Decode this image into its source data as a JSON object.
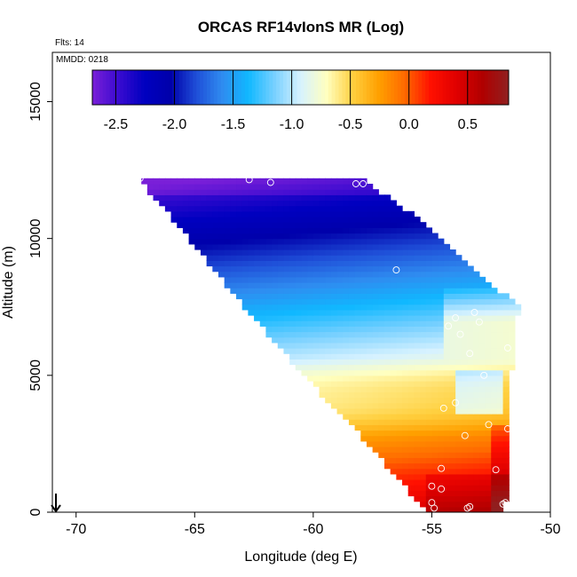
{
  "chart_data": {
    "type": "heatmap",
    "title": "ORCAS RF14vIonS MR (Log)",
    "flights_label": "Flts: 14",
    "date_label": "MMDD: 0218",
    "xlabel": "Longitude (deg E)",
    "ylabel": "Altitude (m)",
    "xlim": [
      -71,
      -50
    ],
    "ylim": [
      0,
      16800
    ],
    "x_ticks": [
      -70,
      -65,
      -60,
      -55,
      -50
    ],
    "x_tick_labels": [
      "-70",
      "-65",
      "-60",
      "-55",
      "-50"
    ],
    "y_ticks": [
      0,
      5000,
      10000,
      15000
    ],
    "y_tick_labels": [
      "0",
      "5000",
      "10000",
      "15000"
    ],
    "colorbar": {
      "range": [
        -2.7,
        0.85
      ],
      "ticks": [
        -2.5,
        -2.0,
        -1.5,
        -1.0,
        -0.5,
        0.0,
        0.5
      ],
      "tick_labels": [
        "-2.5",
        "-2.0",
        "-1.5",
        "-1.0",
        "-0.5",
        "0.0",
        "0.5"
      ],
      "colors": [
        "#7a1fd8",
        "#3a0bd0",
        "#0000c0",
        "#0000aa",
        "#1f4fd8",
        "#2f8cf0",
        "#10b8ff",
        "#78d0ff",
        "#d6f2ff",
        "#ffffc0",
        "#ffd040",
        "#ffa000",
        "#ff6a00",
        "#ff1000",
        "#e00000",
        "#b00000",
        "#902020"
      ]
    },
    "field": {
      "lon_range": [
        -67.5,
        -51.2
      ],
      "alt_range": [
        0,
        12200
      ],
      "left_boundary": [
        [
          12200,
          -67.4
        ],
        [
          11000,
          -66.2
        ],
        [
          9000,
          -64.3
        ],
        [
          7000,
          -62.4
        ],
        [
          5000,
          -60.4
        ],
        [
          3000,
          -58.2
        ],
        [
          1000,
          -56.2
        ],
        [
          0,
          -55.2
        ]
      ],
      "right_boundary": [
        [
          12200,
          -58.0
        ],
        [
          11000,
          -56.0
        ],
        [
          9500,
          -54.0
        ],
        [
          8000,
          -52.0
        ],
        [
          7600,
          -51.3
        ],
        [
          6000,
          -51.6
        ],
        [
          3000,
          -51.7
        ],
        [
          0,
          -51.9
        ]
      ]
    },
    "markers": [
      {
        "lon": -67.3,
        "alt": 12200
      },
      {
        "lon": -62.7,
        "alt": 12150
      },
      {
        "lon": -61.8,
        "alt": 12050
      },
      {
        "lon": -58.2,
        "alt": 12000
      },
      {
        "lon": -57.9,
        "alt": 12000
      },
      {
        "lon": -56.5,
        "alt": 8850
      },
      {
        "lon": -54.0,
        "alt": 7100
      },
      {
        "lon": -54.3,
        "alt": 6800
      },
      {
        "lon": -53.8,
        "alt": 6500
      },
      {
        "lon": -53.2,
        "alt": 7300
      },
      {
        "lon": -53.0,
        "alt": 6950
      },
      {
        "lon": -53.4,
        "alt": 5800
      },
      {
        "lon": -51.8,
        "alt": 6000
      },
      {
        "lon": -52.8,
        "alt": 5000
      },
      {
        "lon": -54.0,
        "alt": 4000
      },
      {
        "lon": -54.5,
        "alt": 3800
      },
      {
        "lon": -52.6,
        "alt": 3200
      },
      {
        "lon": -51.8,
        "alt": 3050
      },
      {
        "lon": -53.6,
        "alt": 2800
      },
      {
        "lon": -54.6,
        "alt": 1600
      },
      {
        "lon": -52.3,
        "alt": 1550
      },
      {
        "lon": -55.0,
        "alt": 950
      },
      {
        "lon": -54.6,
        "alt": 850
      },
      {
        "lon": -55.0,
        "alt": 350
      },
      {
        "lon": -51.9,
        "alt": 350
      },
      {
        "lon": -52.0,
        "alt": 300
      },
      {
        "lon": -53.4,
        "alt": 200
      },
      {
        "lon": -54.9,
        "alt": 150
      },
      {
        "lon": -53.5,
        "alt": 150
      }
    ]
  }
}
